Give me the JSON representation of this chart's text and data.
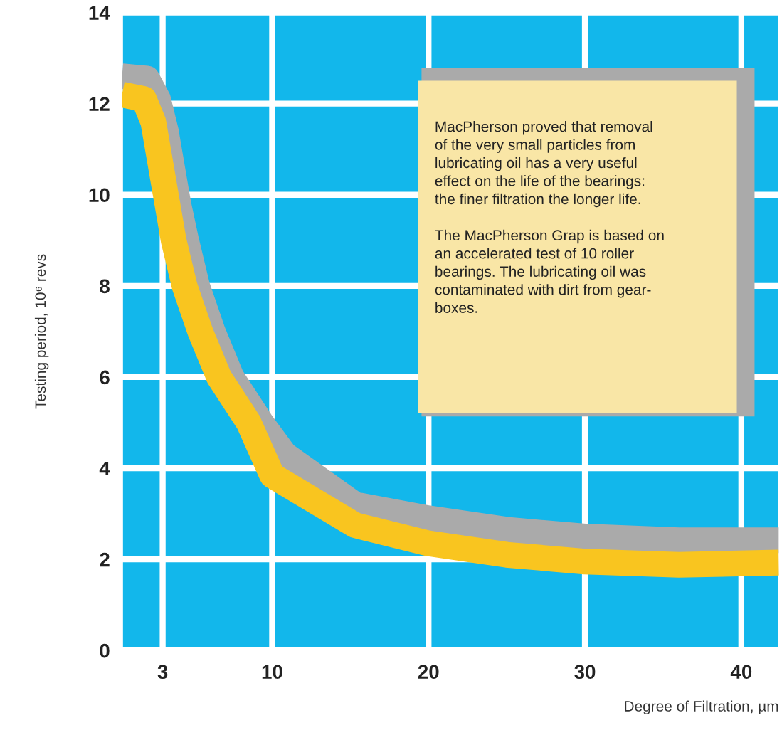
{
  "chart_data": {
    "type": "line",
    "xlabel": "Degree of Filtration, µm",
    "ylabel": "Testing period, 10⁶ revs",
    "xlim": [
      0.4,
      42.4
    ],
    "ylim": [
      0,
      14
    ],
    "xticks": [
      3,
      10,
      20,
      30,
      40
    ],
    "yticks": [
      0,
      2,
      4,
      6,
      8,
      10,
      12,
      14
    ],
    "grid": true,
    "line_style": "solid",
    "marker": "none",
    "series": [
      {
        "color": "#aaaaaa",
        "x": [
          0.4,
          2.0,
          2.7,
          3.2,
          3.6,
          4.0,
          4.5,
          5.2,
          6.2,
          7.4,
          9.3,
          10.8,
          15.3,
          20,
          25,
          30,
          36,
          42.4
        ],
        "values": [
          12.6,
          12.55,
          12.1,
          11.4,
          10.6,
          9.8,
          9.0,
          8.0,
          7.0,
          6.0,
          5.0,
          4.3,
          3.2,
          2.9,
          2.65,
          2.5,
          2.42,
          2.42
        ]
      },
      {
        "color": "#f9c51f",
        "x": [
          0.4,
          1.8,
          2.4,
          2.8,
          3.2,
          3.7,
          4.4,
          5.4,
          6.6,
          8.5,
          10,
          15.3,
          20,
          25,
          30,
          36,
          42.4
        ],
        "values": [
          12.2,
          12.1,
          11.6,
          10.8,
          10.0,
          9.0,
          8.0,
          7.0,
          6.0,
          5.0,
          3.84,
          2.75,
          2.35,
          2.1,
          1.95,
          1.88,
          1.93
        ]
      }
    ],
    "annotations": [
      "MacPherson proved that removal\nof the very small particles from\nlubricating oil has a very useful\neffect on the life of the bearings:\nthe finer filtration the longer life.\n\nThe MacPherson Grap is based on\nan accelerated test of 10 roller\nbearings. The lubricating oil was\ncontaminated with dirt from gear-\nboxes."
    ]
  }
}
